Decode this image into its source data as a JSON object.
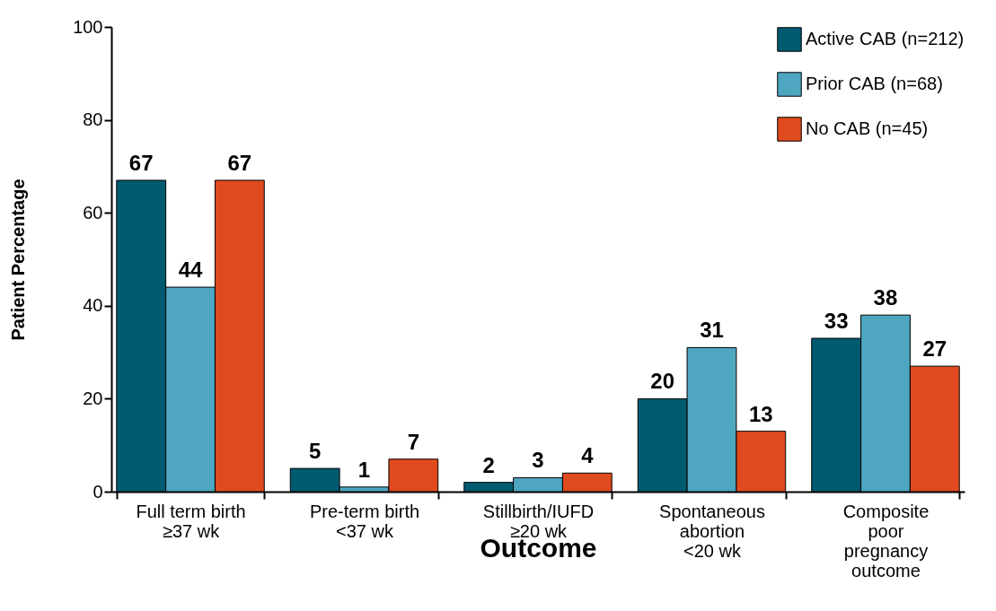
{
  "chart_data": {
    "type": "bar",
    "xlabel": "Outcome",
    "ylabel": "Patient Percentage",
    "categories": [
      "Full term birth\n≥37 wk",
      "Pre-term birth\n<37 wk",
      "Stillbirth/IUFD\n≥20 wk",
      "Spontaneous\nabortion\n<20 wk",
      "Composite\npoor\npregnancy\noutcome"
    ],
    "series": [
      {
        "name": "Active CAB (n=212)",
        "color": "#005a70",
        "values": [
          67,
          5,
          2,
          20,
          33
        ]
      },
      {
        "name": "Prior CAB (n=68)",
        "color": "#4ea6c0",
        "values": [
          44,
          1,
          3,
          31,
          38
        ]
      },
      {
        "name": "No CAB (n=45)",
        "color": "#e04a1f",
        "values": [
          67,
          7,
          4,
          13,
          27
        ]
      }
    ],
    "ylim": [
      0,
      100
    ],
    "yticks": [
      0,
      20,
      40,
      60,
      80,
      100
    ],
    "grid": false,
    "legend": "top right",
    "data_labels": true
  }
}
